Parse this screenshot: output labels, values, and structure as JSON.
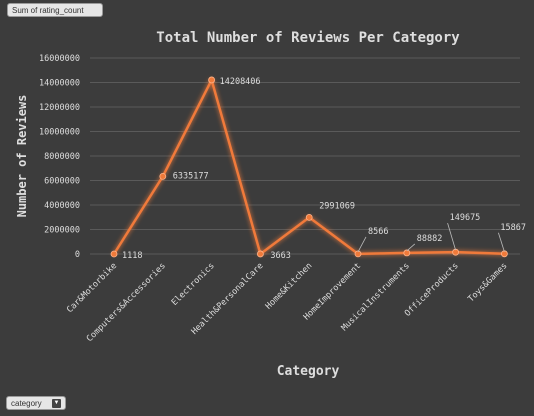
{
  "pivot": {
    "value_field_label": "Sum of rating_count",
    "axis_field_label": "category",
    "axis_field_icon": "dropdown-arrow-icon"
  },
  "chart_data": {
    "type": "line",
    "title": "Total Number of Reviews Per Category",
    "xlabel": "Category",
    "ylabel": "Number of Reviews",
    "categories": [
      "Car&Motorbike",
      "Computers&Accessories",
      "Electronics",
      "Health&PersonalCare",
      "Home&Kitchen",
      "HomeImprovement",
      "MusicalInstruments",
      "OfficeProducts",
      "Toys&Games"
    ],
    "series": [
      {
        "values": [
          1118,
          6335177,
          14208406,
          3663,
          2991069,
          8566,
          88882,
          149675,
          15867
        ]
      }
    ],
    "data_labels": [
      "1118",
      "6335177",
      "14208406",
      "3663",
      "2991069",
      "8566",
      "88882",
      "149675",
      "15867"
    ],
    "ylim": [
      0,
      16000000
    ],
    "yticks": [
      0,
      2000000,
      4000000,
      6000000,
      8000000,
      10000000,
      12000000,
      14000000,
      16000000
    ],
    "ytick_labels": [
      "0",
      "2000000",
      "4000000",
      "6000000",
      "8000000",
      "10000000",
      "12000000",
      "14000000",
      "16000000"
    ],
    "grid": true,
    "legend": "none",
    "line_color": "#f07a3a",
    "text_color": "#dedede",
    "grid_color": "#5a5a5a"
  }
}
